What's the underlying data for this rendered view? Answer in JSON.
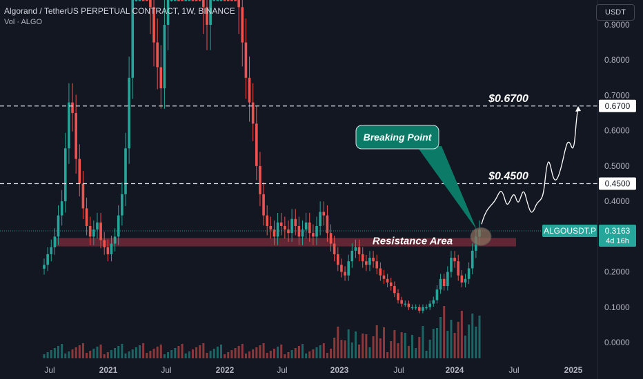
{
  "header": {
    "title": "Algorand / TetherUS PERPETUAL CONTRACT, 1W, BINANCE",
    "volume_label": "Vol · ALGO"
  },
  "currency_button": "USDT",
  "colors": {
    "background": "#131722",
    "up": "#26a69a",
    "down": "#ef5350",
    "resistance": "#7b2c3a",
    "callout": "#0b7a66",
    "axis_text": "#b2b5be"
  },
  "chart_data": {
    "type": "candlestick",
    "x_ticks": [
      "Jul",
      "2021",
      "Jul",
      "2022",
      "Jul",
      "2023",
      "Jul",
      "2024",
      "Jul",
      "2025"
    ],
    "y_ticks": [
      "0.9000",
      "0.8000",
      "0.7000",
      "0.6000",
      "0.5000",
      "0.4000",
      "0.3000",
      "0.2000",
      "0.1000",
      "0.0000"
    ],
    "ylim": [
      0.0,
      0.92
    ],
    "key_levels": [
      {
        "value": 0.67,
        "label": "$0.6700",
        "axis_label": "0.6700"
      },
      {
        "value": 0.45,
        "label": "$0.4500",
        "axis_label": "0.4500"
      }
    ],
    "resistance_zone": {
      "low": 0.28,
      "high": 0.3,
      "label": "Resistance Area"
    },
    "callout": "Breaking Point",
    "current_price": {
      "symbol": "ALGOUSDT.P",
      "value": "0.3163",
      "countdown": "4d 16h"
    },
    "approx_weekly_closes": [
      0.22,
      0.25,
      0.27,
      0.3,
      0.36,
      0.4,
      0.55,
      0.68,
      0.65,
      0.52,
      0.45,
      0.38,
      0.33,
      0.3,
      0.32,
      0.34,
      0.29,
      0.27,
      0.25,
      0.28,
      0.3,
      0.36,
      0.42,
      0.55,
      0.75,
      1.05,
      1.3,
      1.55,
      1.3,
      1.1,
      0.95,
      0.85,
      0.78,
      0.72,
      0.9,
      1.05,
      1.25,
      1.4,
      1.3,
      1.2,
      1.45,
      1.6,
      1.4,
      1.25,
      1.1,
      0.95,
      0.9,
      1.1,
      1.3,
      1.45,
      1.55,
      1.4,
      1.3,
      1.2,
      1.1,
      0.95,
      0.85,
      0.75,
      0.68,
      0.62,
      0.5,
      0.42,
      0.36,
      0.33,
      0.32,
      0.3,
      0.34,
      0.33,
      0.32,
      0.31,
      0.35,
      0.33,
      0.3,
      0.32,
      0.34,
      0.31,
      0.3,
      0.33,
      0.37,
      0.36,
      0.31,
      0.28,
      0.25,
      0.22,
      0.2,
      0.19,
      0.23,
      0.26,
      0.27,
      0.25,
      0.23,
      0.22,
      0.24,
      0.23,
      0.21,
      0.19,
      0.18,
      0.17,
      0.16,
      0.14,
      0.12,
      0.11,
      0.11,
      0.1,
      0.1,
      0.1,
      0.09,
      0.1,
      0.1,
      0.11,
      0.12,
      0.15,
      0.18,
      0.16,
      0.2,
      0.24,
      0.23,
      0.19,
      0.17,
      0.18,
      0.21,
      0.26,
      0.3,
      0.32
    ]
  }
}
